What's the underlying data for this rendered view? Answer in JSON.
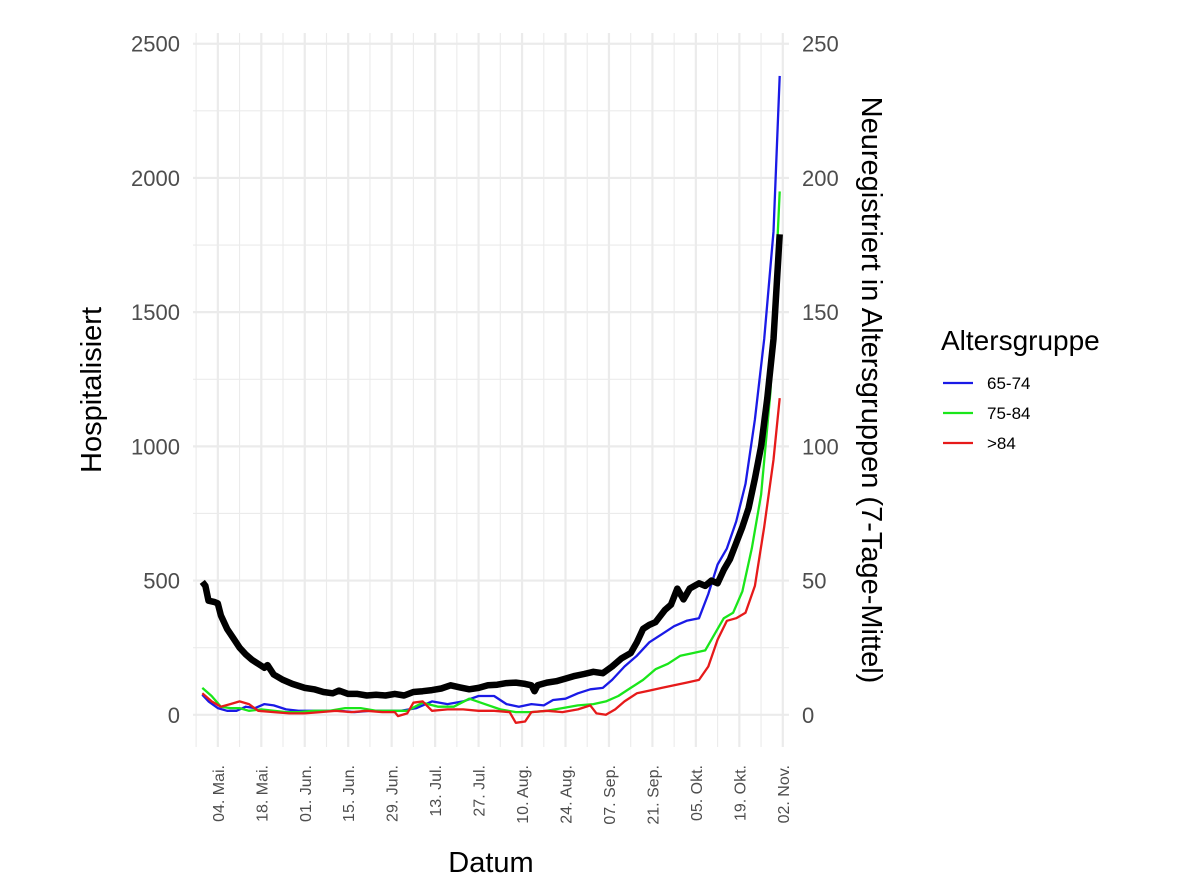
{
  "chart_data": {
    "type": "line",
    "xlabel": "Datum",
    "ylabel_left": "Hospitalisiert",
    "ylabel_right": "Neuregistriert in Altersgruppen (7-Tage-Mittel)",
    "legend_title": "Altersgruppe",
    "legend_position": "right",
    "grid": true,
    "x_range": [
      "2020-04-26",
      "2020-11-04"
    ],
    "ylim_left": [
      -120,
      2540
    ],
    "ylim_right": [
      -12,
      254
    ],
    "y_ticks_left": [
      0,
      500,
      1000,
      1500,
      2000,
      2500
    ],
    "y_ticks_right": [
      0,
      50,
      100,
      150,
      200,
      250
    ],
    "x_ticks": [
      {
        "date": "2020-05-04",
        "label": "04. Mai."
      },
      {
        "date": "2020-05-18",
        "label": "18. Mai."
      },
      {
        "date": "2020-06-01",
        "label": "01. Jun."
      },
      {
        "date": "2020-06-15",
        "label": "15. Jun."
      },
      {
        "date": "2020-06-29",
        "label": "29. Jun."
      },
      {
        "date": "2020-07-13",
        "label": "13. Jul."
      },
      {
        "date": "2020-07-27",
        "label": "27. Jul."
      },
      {
        "date": "2020-08-10",
        "label": "10. Aug."
      },
      {
        "date": "2020-08-24",
        "label": "24. Aug."
      },
      {
        "date": "2020-09-07",
        "label": "07. Sep."
      },
      {
        "date": "2020-09-21",
        "label": "21. Sep."
      },
      {
        "date": "2020-10-05",
        "label": "05. Okt."
      },
      {
        "date": "2020-10-19",
        "label": "19. Okt."
      },
      {
        "date": "2020-11-02",
        "label": "02. Nov."
      }
    ],
    "hospitalized": {
      "color": "#000000",
      "axis": "left",
      "points": [
        [
          "2020-04-29",
          495
        ],
        [
          "2020-04-30",
          480
        ],
        [
          "2020-05-01",
          425
        ],
        [
          "2020-05-03",
          420
        ],
        [
          "2020-05-04",
          415
        ],
        [
          "2020-05-05",
          370
        ],
        [
          "2020-05-07",
          320
        ],
        [
          "2020-05-09",
          285
        ],
        [
          "2020-05-11",
          250
        ],
        [
          "2020-05-13",
          225
        ],
        [
          "2020-05-15",
          205
        ],
        [
          "2020-05-17",
          190
        ],
        [
          "2020-05-19",
          175
        ],
        [
          "2020-05-20",
          185
        ],
        [
          "2020-05-22",
          150
        ],
        [
          "2020-05-25",
          130
        ],
        [
          "2020-05-28",
          115
        ],
        [
          "2020-06-01",
          100
        ],
        [
          "2020-06-04",
          95
        ],
        [
          "2020-06-07",
          85
        ],
        [
          "2020-06-10",
          80
        ],
        [
          "2020-06-12",
          90
        ],
        [
          "2020-06-15",
          78
        ],
        [
          "2020-06-18",
          78
        ],
        [
          "2020-06-21",
          72
        ],
        [
          "2020-06-24",
          75
        ],
        [
          "2020-06-27",
          72
        ],
        [
          "2020-06-30",
          78
        ],
        [
          "2020-07-03",
          72
        ],
        [
          "2020-07-06",
          85
        ],
        [
          "2020-07-09",
          88
        ],
        [
          "2020-07-12",
          92
        ],
        [
          "2020-07-15",
          98
        ],
        [
          "2020-07-18",
          110
        ],
        [
          "2020-07-21",
          102
        ],
        [
          "2020-07-24",
          95
        ],
        [
          "2020-07-27",
          100
        ],
        [
          "2020-07-30",
          110
        ],
        [
          "2020-08-02",
          112
        ],
        [
          "2020-08-05",
          118
        ],
        [
          "2020-08-08",
          120
        ],
        [
          "2020-08-11",
          115
        ],
        [
          "2020-08-13",
          110
        ],
        [
          "2020-08-14",
          88
        ],
        [
          "2020-08-15",
          110
        ],
        [
          "2020-08-18",
          120
        ],
        [
          "2020-08-21",
          125
        ],
        [
          "2020-08-24",
          135
        ],
        [
          "2020-08-27",
          145
        ],
        [
          "2020-08-30",
          152
        ],
        [
          "2020-09-02",
          160
        ],
        [
          "2020-09-05",
          155
        ],
        [
          "2020-09-08",
          180
        ],
        [
          "2020-09-11",
          210
        ],
        [
          "2020-09-14",
          230
        ],
        [
          "2020-09-16",
          270
        ],
        [
          "2020-09-18",
          320
        ],
        [
          "2020-09-20",
          335
        ],
        [
          "2020-09-22",
          345
        ],
        [
          "2020-09-25",
          390
        ],
        [
          "2020-09-27",
          410
        ],
        [
          "2020-09-29",
          470
        ],
        [
          "2020-10-01",
          430
        ],
        [
          "2020-10-03",
          470
        ],
        [
          "2020-10-06",
          490
        ],
        [
          "2020-10-08",
          480
        ],
        [
          "2020-10-10",
          500
        ],
        [
          "2020-10-12",
          490
        ],
        [
          "2020-10-14",
          540
        ],
        [
          "2020-10-16",
          580
        ],
        [
          "2020-10-18",
          640
        ],
        [
          "2020-10-20",
          700
        ],
        [
          "2020-10-22",
          770
        ],
        [
          "2020-10-24",
          880
        ],
        [
          "2020-10-26",
          1000
        ],
        [
          "2020-10-28",
          1180
        ],
        [
          "2020-10-30",
          1400
        ],
        [
          "2020-11-01",
          1790
        ]
      ]
    },
    "series": [
      {
        "name": "65-74",
        "color": "#1a1ae6",
        "axis": "right",
        "points": [
          [
            "2020-04-29",
            7.5
          ],
          [
            "2020-05-01",
            5
          ],
          [
            "2020-05-04",
            2.5
          ],
          [
            "2020-05-07",
            1.5
          ],
          [
            "2020-05-10",
            1.5
          ],
          [
            "2020-05-13",
            3
          ],
          [
            "2020-05-16",
            2.5
          ],
          [
            "2020-05-19",
            4
          ],
          [
            "2020-05-22",
            3.5
          ],
          [
            "2020-05-26",
            2
          ],
          [
            "2020-05-30",
            1.5
          ],
          [
            "2020-06-03",
            1.5
          ],
          [
            "2020-06-07",
            1.5
          ],
          [
            "2020-06-12",
            1.5
          ],
          [
            "2020-06-17",
            1
          ],
          [
            "2020-06-22",
            1.5
          ],
          [
            "2020-06-27",
            1.5
          ],
          [
            "2020-07-02",
            1.5
          ],
          [
            "2020-07-07",
            2.5
          ],
          [
            "2020-07-12",
            5
          ],
          [
            "2020-07-17",
            4
          ],
          [
            "2020-07-22",
            5
          ],
          [
            "2020-07-27",
            7
          ],
          [
            "2020-08-01",
            7
          ],
          [
            "2020-08-05",
            4
          ],
          [
            "2020-08-09",
            3
          ],
          [
            "2020-08-13",
            4
          ],
          [
            "2020-08-17",
            3.5
          ],
          [
            "2020-08-20",
            5.5
          ],
          [
            "2020-08-24",
            6
          ],
          [
            "2020-08-28",
            8
          ],
          [
            "2020-09-01",
            9.5
          ],
          [
            "2020-09-05",
            10
          ],
          [
            "2020-09-08",
            13
          ],
          [
            "2020-09-12",
            18
          ],
          [
            "2020-09-16",
            22
          ],
          [
            "2020-09-20",
            27
          ],
          [
            "2020-09-24",
            30
          ],
          [
            "2020-09-28",
            33
          ],
          [
            "2020-10-02",
            35
          ],
          [
            "2020-10-06",
            36
          ],
          [
            "2020-10-09",
            45
          ],
          [
            "2020-10-12",
            56
          ],
          [
            "2020-10-15",
            62
          ],
          [
            "2020-10-18",
            72
          ],
          [
            "2020-10-21",
            86
          ],
          [
            "2020-10-24",
            110
          ],
          [
            "2020-10-27",
            140
          ],
          [
            "2020-10-30",
            180
          ],
          [
            "2020-11-01",
            238
          ]
        ]
      },
      {
        "name": "75-84",
        "color": "#1ae61a",
        "axis": "right",
        "points": [
          [
            "2020-04-29",
            10
          ],
          [
            "2020-05-02",
            7
          ],
          [
            "2020-05-05",
            3
          ],
          [
            "2020-05-08",
            2.5
          ],
          [
            "2020-05-11",
            2.5
          ],
          [
            "2020-05-14",
            1.5
          ],
          [
            "2020-05-18",
            2
          ],
          [
            "2020-05-22",
            1.5
          ],
          [
            "2020-05-26",
            1
          ],
          [
            "2020-05-30",
            1
          ],
          [
            "2020-06-04",
            1.5
          ],
          [
            "2020-06-09",
            1.5
          ],
          [
            "2020-06-14",
            2.5
          ],
          [
            "2020-06-19",
            2.5
          ],
          [
            "2020-06-24",
            1.5
          ],
          [
            "2020-06-29",
            1.5
          ],
          [
            "2020-07-04",
            1.5
          ],
          [
            "2020-07-09",
            4.5
          ],
          [
            "2020-07-14",
            3
          ],
          [
            "2020-07-19",
            3
          ],
          [
            "2020-07-24",
            6
          ],
          [
            "2020-07-29",
            4
          ],
          [
            "2020-08-03",
            2
          ],
          [
            "2020-08-08",
            1
          ],
          [
            "2020-08-13",
            1
          ],
          [
            "2020-08-18",
            1.5
          ],
          [
            "2020-08-23",
            2.5
          ],
          [
            "2020-08-28",
            3.5
          ],
          [
            "2020-09-02",
            4
          ],
          [
            "2020-09-06",
            5
          ],
          [
            "2020-09-10",
            7
          ],
          [
            "2020-09-14",
            10
          ],
          [
            "2020-09-18",
            13
          ],
          [
            "2020-09-22",
            17
          ],
          [
            "2020-09-26",
            19
          ],
          [
            "2020-09-30",
            22
          ],
          [
            "2020-10-04",
            23
          ],
          [
            "2020-10-08",
            24
          ],
          [
            "2020-10-11",
            30
          ],
          [
            "2020-10-14",
            36
          ],
          [
            "2020-10-17",
            38
          ],
          [
            "2020-10-20",
            46
          ],
          [
            "2020-10-23",
            62
          ],
          [
            "2020-10-26",
            82
          ],
          [
            "2020-10-29",
            120
          ],
          [
            "2020-11-01",
            195
          ]
        ]
      },
      {
        "name": ">84",
        "color": "#e61a1a",
        "axis": "right",
        "points": [
          [
            "2020-04-29",
            8
          ],
          [
            "2020-05-02",
            5
          ],
          [
            "2020-05-05",
            3
          ],
          [
            "2020-05-08",
            4
          ],
          [
            "2020-05-11",
            5
          ],
          [
            "2020-05-14",
            4
          ],
          [
            "2020-05-17",
            1.5
          ],
          [
            "2020-05-22",
            1
          ],
          [
            "2020-05-27",
            0.5
          ],
          [
            "2020-06-01",
            0.5
          ],
          [
            "2020-06-06",
            1
          ],
          [
            "2020-06-11",
            1.5
          ],
          [
            "2020-06-16",
            1
          ],
          [
            "2020-06-21",
            1.5
          ],
          [
            "2020-06-26",
            1
          ],
          [
            "2020-06-30",
            1
          ],
          [
            "2020-07-01",
            -0.5
          ],
          [
            "2020-07-04",
            0.5
          ],
          [
            "2020-07-06",
            4.5
          ],
          [
            "2020-07-09",
            5
          ],
          [
            "2020-07-12",
            1.5
          ],
          [
            "2020-07-17",
            2
          ],
          [
            "2020-07-22",
            2
          ],
          [
            "2020-07-27",
            1.5
          ],
          [
            "2020-08-01",
            1.5
          ],
          [
            "2020-08-06",
            1
          ],
          [
            "2020-08-08",
            -3
          ],
          [
            "2020-08-11",
            -2.5
          ],
          [
            "2020-08-13",
            1
          ],
          [
            "2020-08-18",
            1.5
          ],
          [
            "2020-08-23",
            1
          ],
          [
            "2020-08-28",
            2
          ],
          [
            "2020-09-01",
            3.5
          ],
          [
            "2020-09-03",
            0.5
          ],
          [
            "2020-09-06",
            0
          ],
          [
            "2020-09-09",
            2
          ],
          [
            "2020-09-12",
            5
          ],
          [
            "2020-09-16",
            8
          ],
          [
            "2020-09-20",
            9
          ],
          [
            "2020-09-24",
            10
          ],
          [
            "2020-09-28",
            11
          ],
          [
            "2020-10-02",
            12
          ],
          [
            "2020-10-06",
            13
          ],
          [
            "2020-10-09",
            18
          ],
          [
            "2020-10-12",
            28
          ],
          [
            "2020-10-15",
            35
          ],
          [
            "2020-10-18",
            36
          ],
          [
            "2020-10-21",
            38
          ],
          [
            "2020-10-24",
            48
          ],
          [
            "2020-10-27",
            70
          ],
          [
            "2020-10-30",
            95
          ],
          [
            "2020-11-01",
            118
          ]
        ]
      }
    ]
  }
}
